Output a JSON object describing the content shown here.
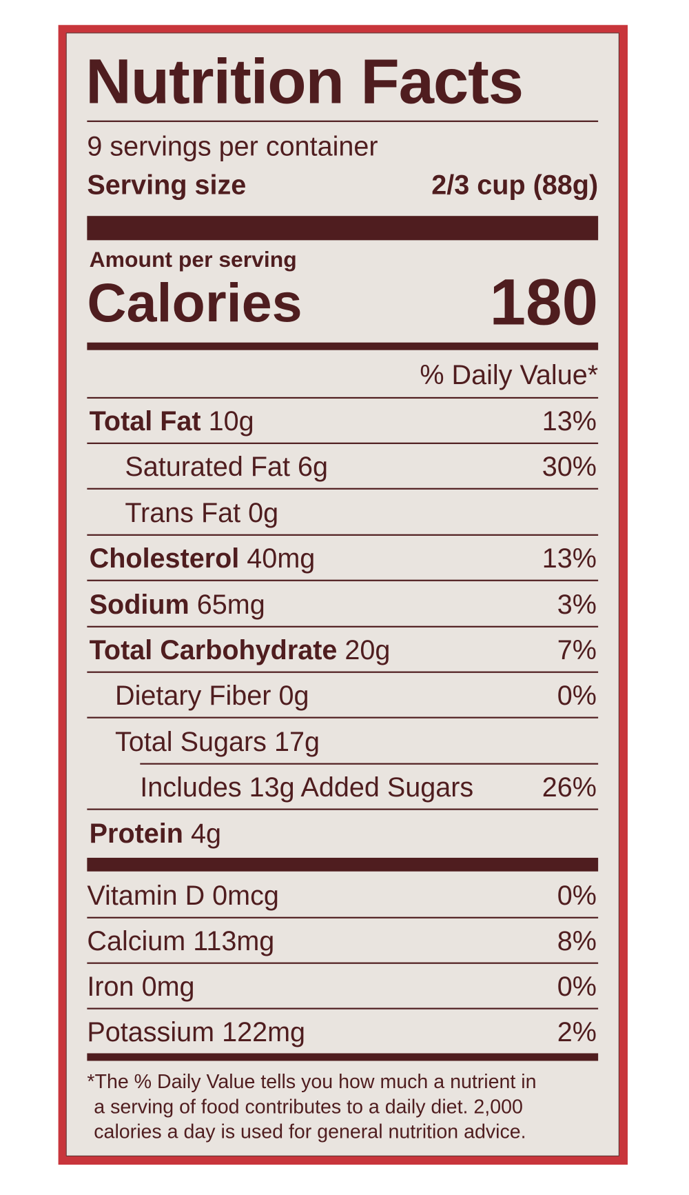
{
  "title": "Nutrition Facts",
  "servings_per_container": "9 servings per container",
  "serving_size_label": "Serving size",
  "serving_size_value": "2/3 cup (88g)",
  "amount_per_serving": "Amount per serving",
  "calories_label": "Calories",
  "calories_value": "180",
  "daily_value_header": "% Daily Value*",
  "nutrients": [
    {
      "name": "Total Fat",
      "amount": "10g",
      "dv": "13%",
      "bold": true,
      "indent": 0
    },
    {
      "name": "Saturated Fat",
      "amount": "6g",
      "dv": "30%",
      "bold": false,
      "indent": 1
    },
    {
      "name": "Trans Fat",
      "amount": "0g",
      "dv": "",
      "bold": false,
      "indent": 1
    },
    {
      "name": "Cholesterol",
      "amount": "40mg",
      "dv": "13%",
      "bold": true,
      "indent": 0
    },
    {
      "name": "Sodium",
      "amount": "65mg",
      "dv": "3%",
      "bold": true,
      "indent": 0
    },
    {
      "name": "Total Carbohydrate",
      "amount": "20g",
      "dv": "7%",
      "bold": true,
      "indent": 0
    },
    {
      "name": "Dietary Fiber",
      "amount": "0g",
      "dv": "0%",
      "bold": false,
      "indent": 1
    },
    {
      "name": "Total Sugars",
      "amount": "17g",
      "dv": "",
      "bold": false,
      "indent": 1
    },
    {
      "name": "Includes 13g Added Sugars",
      "amount": "",
      "dv": "26%",
      "bold": false,
      "indent": 2
    },
    {
      "name": "Protein",
      "amount": "4g",
      "dv": "",
      "bold": true,
      "indent": 0
    }
  ],
  "vitamins": [
    {
      "name": "Vitamin D",
      "amount": "0mcg",
      "dv": "0%"
    },
    {
      "name": "Calcium",
      "amount": "113mg",
      "dv": "8%"
    },
    {
      "name": "Iron",
      "amount": "0mg",
      "dv": "0%"
    },
    {
      "name": "Potassium",
      "amount": "122mg",
      "dv": "2%"
    }
  ],
  "footnote": [
    "*The % Daily Value tells you how much a nutrient in",
    "a serving of food contributes to a daily diet. 2,000",
    "calories a day is used for general nutrition advice."
  ],
  "colors": {
    "border_red": "#c8353b",
    "ink": "#4f1d1f",
    "panel": "#e9e4df"
  }
}
